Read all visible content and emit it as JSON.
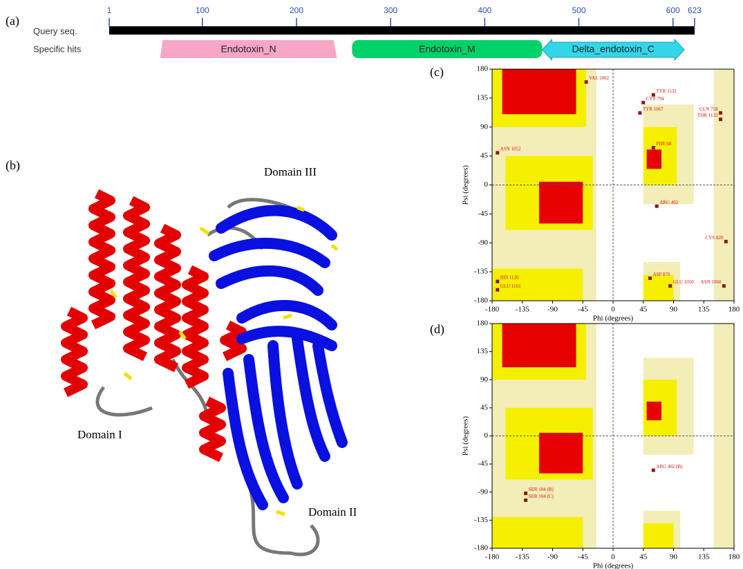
{
  "panel_a": {
    "label": "(a)",
    "query_label": "Query seq.",
    "hits_label": "Specific hits",
    "xlim": [
      1,
      623
    ],
    "ticks": [
      1,
      100,
      200,
      300,
      400,
      500,
      600,
      623
    ],
    "hits": [
      {
        "name": "Endotoxin_N",
        "start": 55,
        "end": 243
      },
      {
        "name": "Endotoxin_M",
        "start": 259,
        "end": 461
      },
      {
        "name": "Delta_endotoxin_C",
        "start": 461,
        "end": 612
      }
    ]
  },
  "panel_b": {
    "label": "(b)",
    "domains": [
      "Domain I",
      "Domain II",
      "Domain III"
    ]
  },
  "plots": [
    {
      "label": "(c)",
      "xlabel": "Phi (degrees)",
      "ylabel": "Psi (degrees)",
      "xlim": [
        -180,
        180
      ],
      "ylim": [
        -180,
        180
      ],
      "xticks": [
        -180,
        -135,
        -90,
        -45,
        0,
        45,
        90,
        135,
        180
      ],
      "yticks": [
        -180,
        -135,
        -90,
        -45,
        0,
        45,
        90,
        135,
        180
      ],
      "residues": [
        {
          "label": "VAL 1062",
          "phi": -40,
          "psi": 160
        },
        {
          "label": "TYR 1132",
          "phi": 60,
          "psi": 140
        },
        {
          "label": "CYS 794",
          "phi": 45,
          "psi": 128
        },
        {
          "label": "TYR 1067",
          "phi": 40,
          "psi": 112
        },
        {
          "label": "GLN 758",
          "phi": 160,
          "psi": 112
        },
        {
          "label": "THR 1133",
          "phi": 160,
          "psi": 102
        },
        {
          "label": "PHE 68",
          "phi": 60,
          "psi": 58
        },
        {
          "label": "ASN 1052",
          "phi": -172,
          "psi": 50
        },
        {
          "label": "ARG 402",
          "phi": 65,
          "psi": -33
        },
        {
          "label": "CYS 820",
          "phi": 168,
          "psi": -88
        },
        {
          "label": "HIS 1120",
          "phi": -172,
          "psi": -150
        },
        {
          "label": "GLU 1161",
          "phi": -172,
          "psi": -163
        },
        {
          "label": "ASP 870",
          "phi": 55,
          "psi": -145
        },
        {
          "label": "GLU 1050",
          "phi": 85,
          "psi": -157
        },
        {
          "label": "ASN 1060",
          "phi": 165,
          "psi": -157
        }
      ]
    },
    {
      "label": "(d)",
      "xlabel": "Phi (degrees)",
      "ylabel": "Psi (degrees)",
      "xlim": [
        -180,
        180
      ],
      "ylim": [
        -180,
        180
      ],
      "xticks": [
        -180,
        -135,
        -90,
        -45,
        0,
        45,
        90,
        135,
        180
      ],
      "yticks": [
        -180,
        -135,
        -90,
        -45,
        0,
        45,
        90,
        135,
        180
      ],
      "residues": [
        {
          "label": "ARG 402 (B)",
          "phi": 60,
          "psi": -55
        },
        {
          "label": "SER 104 (B)",
          "phi": -130,
          "psi": -92
        },
        {
          "label": "SER 104 (C)",
          "phi": -130,
          "psi": -103
        }
      ]
    }
  ]
}
